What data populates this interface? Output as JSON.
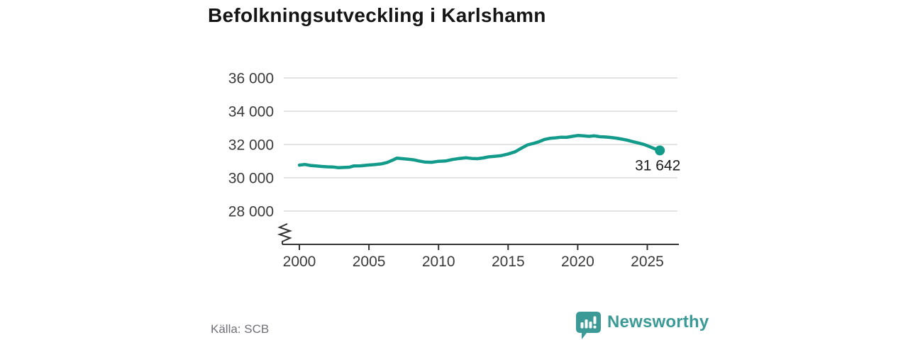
{
  "title": "Befolkningsutveckling i Karlshamn",
  "source": "Källa: SCB",
  "branding": {
    "name": "Newsworthy",
    "color": "#3b9a96"
  },
  "chart_data": {
    "type": "line",
    "title": "Befolkningsutveckling i Karlshamn",
    "xlabel": "",
    "ylabel": "",
    "xlim": [
      2000,
      2026.5
    ],
    "ylim": [
      28000,
      36000
    ],
    "grid": true,
    "axis_break": true,
    "line_color": "#129a8a",
    "grid_color": "#dcdcdc",
    "axis_color": "#333333",
    "y_tick_values": [
      36000,
      34000,
      32000,
      30000,
      28000
    ],
    "y_tick_labels": [
      "36 000",
      "34 000",
      "32 000",
      "30 000",
      "28 000"
    ],
    "x_tick_values": [
      2000,
      2005,
      2010,
      2015,
      2020,
      2025
    ],
    "x_tick_labels": [
      "2000",
      "2005",
      "2010",
      "2015",
      "2020",
      "2025"
    ],
    "end_point": {
      "x": 2025.9,
      "value": 31642,
      "label": "31 642"
    },
    "series": [
      {
        "name": "Befolkning",
        "points": [
          [
            2000.0,
            30760
          ],
          [
            2000.4,
            30800
          ],
          [
            2000.8,
            30740
          ],
          [
            2001.2,
            30710
          ],
          [
            2001.6,
            30680
          ],
          [
            2002.0,
            30660
          ],
          [
            2002.4,
            30650
          ],
          [
            2002.8,
            30610
          ],
          [
            2003.2,
            30620
          ],
          [
            2003.6,
            30640
          ],
          [
            2003.9,
            30710
          ],
          [
            2004.4,
            30720
          ],
          [
            2004.9,
            30760
          ],
          [
            2005.4,
            30790
          ],
          [
            2005.9,
            30840
          ],
          [
            2006.3,
            30920
          ],
          [
            2006.7,
            31060
          ],
          [
            2007.0,
            31180
          ],
          [
            2007.4,
            31150
          ],
          [
            2007.8,
            31120
          ],
          [
            2008.2,
            31080
          ],
          [
            2008.6,
            31010
          ],
          [
            2009.0,
            30950
          ],
          [
            2009.5,
            30930
          ],
          [
            2010.0,
            30990
          ],
          [
            2010.5,
            31010
          ],
          [
            2011.0,
            31100
          ],
          [
            2011.5,
            31160
          ],
          [
            2012.0,
            31200
          ],
          [
            2012.4,
            31160
          ],
          [
            2012.8,
            31150
          ],
          [
            2013.2,
            31190
          ],
          [
            2013.6,
            31260
          ],
          [
            2014.0,
            31290
          ],
          [
            2014.5,
            31330
          ],
          [
            2015.0,
            31430
          ],
          [
            2015.5,
            31560
          ],
          [
            2016.0,
            31800
          ],
          [
            2016.4,
            31980
          ],
          [
            2016.8,
            32060
          ],
          [
            2017.2,
            32160
          ],
          [
            2017.6,
            32300
          ],
          [
            2018.0,
            32370
          ],
          [
            2018.4,
            32400
          ],
          [
            2018.8,
            32440
          ],
          [
            2019.2,
            32430
          ],
          [
            2019.6,
            32490
          ],
          [
            2020.0,
            32540
          ],
          [
            2020.4,
            32520
          ],
          [
            2020.8,
            32490
          ],
          [
            2021.2,
            32520
          ],
          [
            2021.6,
            32470
          ],
          [
            2022.0,
            32450
          ],
          [
            2022.4,
            32420
          ],
          [
            2022.8,
            32380
          ],
          [
            2023.2,
            32320
          ],
          [
            2023.6,
            32250
          ],
          [
            2024.0,
            32160
          ],
          [
            2024.4,
            32080
          ],
          [
            2024.8,
            31990
          ],
          [
            2025.2,
            31860
          ],
          [
            2025.6,
            31720
          ],
          [
            2025.9,
            31642
          ]
        ]
      }
    ]
  }
}
